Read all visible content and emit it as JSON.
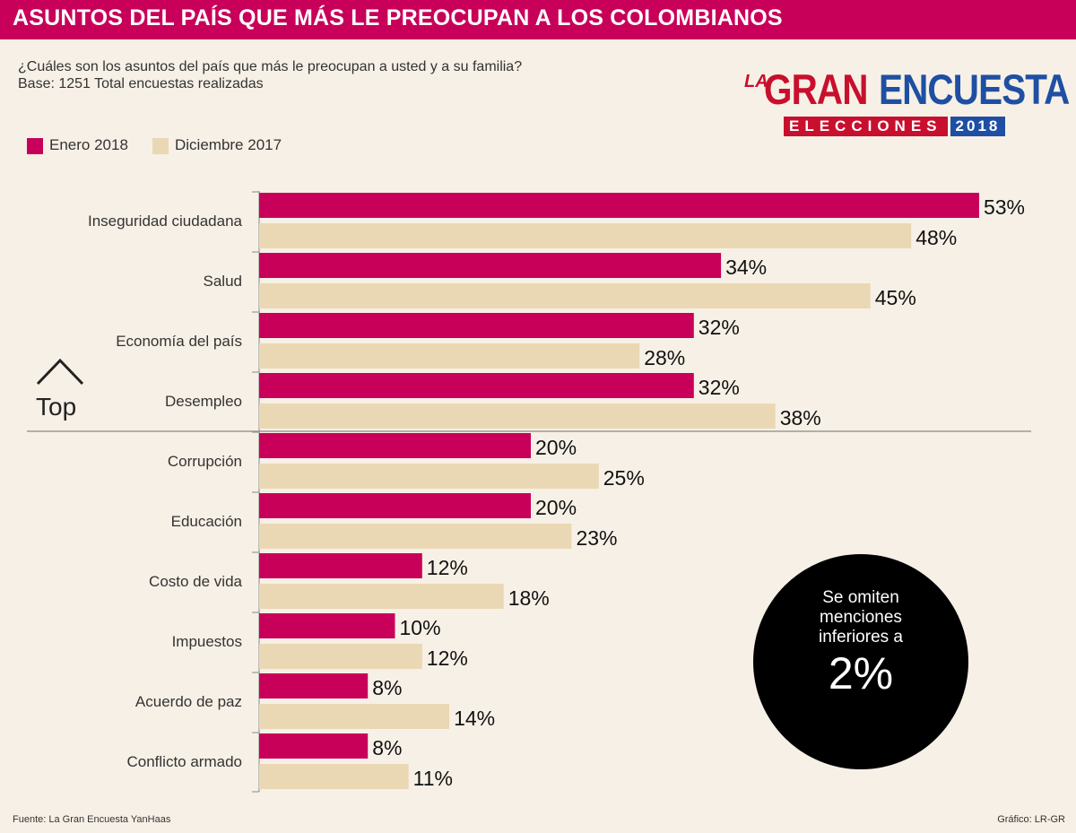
{
  "title": "ASUNTOS DEL PAÍS QUE MÁS LE PREOCUPAN A LOS COLOMBIANOS",
  "subtitle": "¿Cuáles son los asuntos del país que más le preocupan a usted y a su familia?",
  "base": "Base: 1251 Total encuestas realizadas",
  "logo": {
    "la": "LA",
    "gran": "GRAN",
    "encuesta": "ENCUESTA",
    "elecciones": "ELECCIONES",
    "year": "2018",
    "colors": {
      "red": "#c8102e",
      "blue": "#1f4fa3"
    }
  },
  "top_marker": {
    "label": "Top",
    "icon": "chevron-up-icon"
  },
  "note": {
    "line1": "Se omiten",
    "line2": "menciones",
    "line3": "inferiores a",
    "value": "2%"
  },
  "footer": {
    "source": "Fuente: La Gran Encuesta YanHaas",
    "credit": "Gráfico: LR-GR"
  },
  "colors": {
    "header": "#c8005a",
    "series1": "#c8005a",
    "series2": "#ead8b4",
    "background": "#f7f0e6"
  },
  "chart_data": {
    "type": "bar",
    "orientation": "horizontal",
    "categories": [
      "Inseguridad ciudadana",
      "Salud",
      "Economía del país",
      "Desempleo",
      "Corrupción",
      "Educación",
      "Costo de vida",
      "Impuestos",
      "Acuerdo de paz",
      "Conflicto armado"
    ],
    "series": [
      {
        "name": "Enero 2018",
        "color": "#c8005a",
        "values": [
          53,
          34,
          32,
          32,
          20,
          20,
          12,
          10,
          8,
          8
        ]
      },
      {
        "name": "Diciembre 2017",
        "color": "#ead8b4",
        "values": [
          48,
          45,
          28,
          38,
          25,
          23,
          18,
          12,
          14,
          11
        ]
      }
    ],
    "value_suffix": "%",
    "legend_position": "top-left",
    "grid": false
  }
}
